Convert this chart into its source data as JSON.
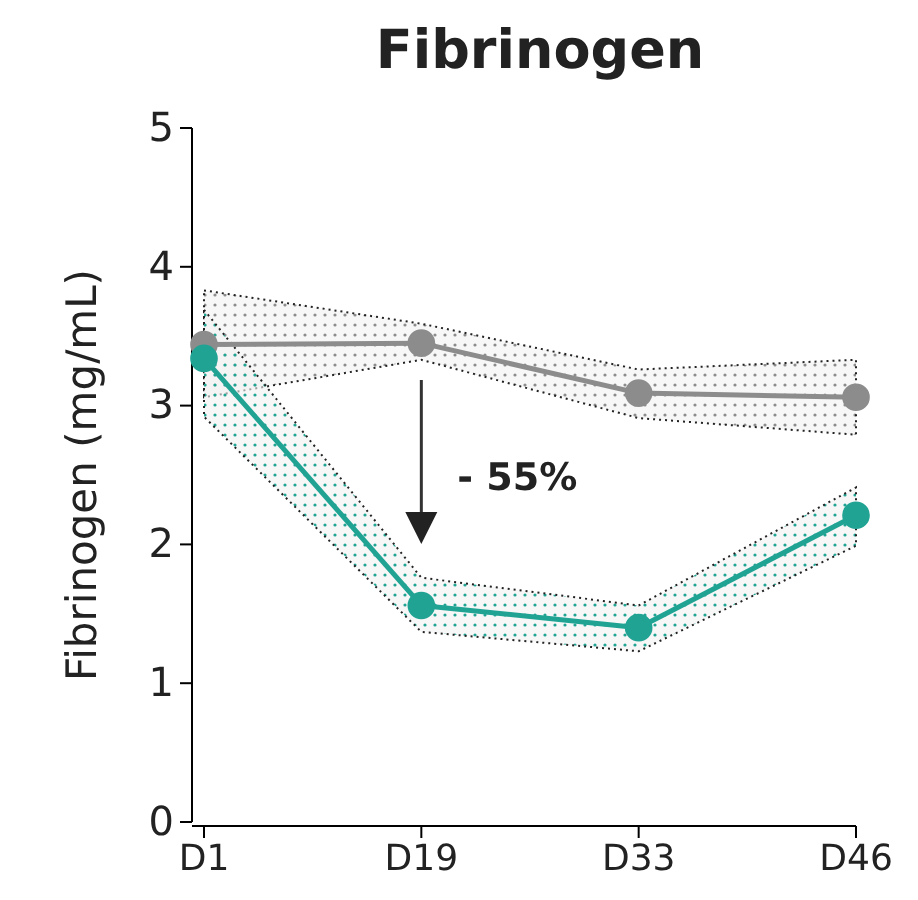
{
  "chart_data": {
    "type": "line",
    "title": "Fibrinogen",
    "ylabel": "Fibrinogen (mg/mL)",
    "categories": [
      "D1",
      "D19",
      "D33",
      "D46"
    ],
    "ylim": [
      0,
      5
    ],
    "yticks": [
      0,
      1,
      2,
      3,
      4,
      5
    ],
    "series": [
      {
        "color": "#8c8c8c",
        "values": [
          3.44,
          3.45,
          3.09,
          3.06
        ],
        "lower": [
          3.06,
          3.33,
          2.91,
          2.79
        ],
        "upper": [
          3.83,
          3.59,
          3.26,
          3.33
        ]
      },
      {
        "color": "#21a394",
        "values": [
          3.34,
          1.56,
          1.4,
          2.21
        ],
        "lower": [
          2.92,
          1.37,
          1.23,
          1.99
        ],
        "upper": [
          3.69,
          1.76,
          1.56,
          2.41
        ]
      }
    ],
    "annotations": [
      "- 55%"
    ],
    "marker": "circle",
    "line_style": "solid",
    "grid": false
  }
}
